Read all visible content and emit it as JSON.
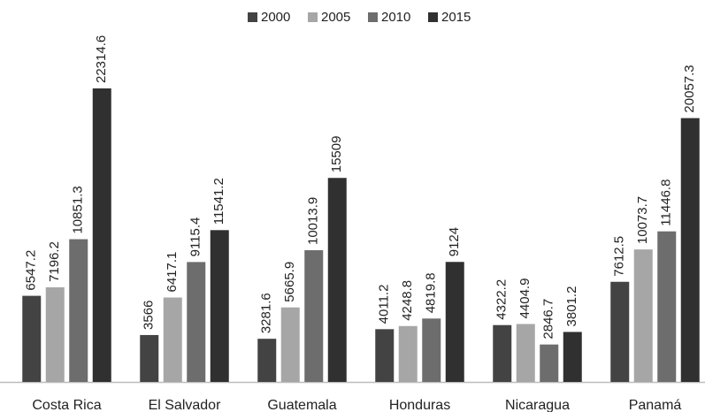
{
  "chart_data": {
    "type": "bar",
    "categories": [
      "Costa Rica",
      "El Salvador",
      "Guatemala",
      "Honduras",
      "Nicaragua",
      "Panamá"
    ],
    "series": [
      {
        "name": "2000",
        "color": "#434343",
        "values": [
          6547.2,
          3566,
          3281.6,
          4011.2,
          4322.2,
          7612.5
        ]
      },
      {
        "name": "2005",
        "color": "#a6a6a6",
        "values": [
          7196.2,
          6417.1,
          5665.9,
          4248.8,
          4404.9,
          10073.7
        ]
      },
      {
        "name": "2010",
        "color": "#6d6d6d",
        "values": [
          10851.3,
          9115.4,
          10013.9,
          4819.8,
          2846.7,
          11446.8
        ]
      },
      {
        "name": "2015",
        "color": "#303030",
        "values": [
          22314.6,
          11541.2,
          15509,
          9124,
          3801.2,
          20057.3
        ]
      }
    ],
    "legend": "top"
  }
}
